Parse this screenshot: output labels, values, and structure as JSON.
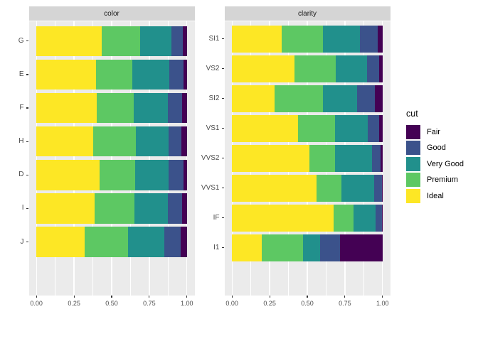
{
  "figure": {
    "background": "#FFFFFF"
  },
  "style": {
    "panel_bg": "#EBEBEB",
    "strip_bg": "#D5D5D5",
    "grid_color": "#FFFFFF",
    "tick_color": "#333333",
    "axis_text_color": "#4D4D4D",
    "strip_text_color": "#1A1A1A"
  },
  "legend": {
    "title": "cut",
    "entries": [
      {
        "label": "Fair",
        "color": "#440154"
      },
      {
        "label": "Good",
        "color": "#3B528B"
      },
      {
        "label": "Very Good",
        "color": "#21908C"
      },
      {
        "label": "Premium",
        "color": "#5DC863"
      },
      {
        "label": "Ideal",
        "color": "#FDE725"
      }
    ]
  },
  "x_tick_labels": [
    "0.00",
    "0.25",
    "0.50",
    "0.75",
    "1.00"
  ],
  "x_tick_values": [
    0,
    0.25,
    0.5,
    0.75,
    1
  ],
  "minor_gridline_values": [
    0.125,
    0.375,
    0.625,
    0.875
  ],
  "chart_data": [
    {
      "type": "bar",
      "orientation": "horizontal",
      "stacking": "fill",
      "title": "color",
      "xlim": [
        0,
        1
      ],
      "grid": true,
      "categories": [
        "G",
        "E",
        "F",
        "H",
        "D",
        "I",
        "J"
      ],
      "series": [
        {
          "name": "Ideal",
          "values": [
            0.433,
            0.398,
            0.401,
            0.375,
            0.418,
            0.386,
            0.319
          ]
        },
        {
          "name": "Premium",
          "values": [
            0.259,
            0.239,
            0.244,
            0.284,
            0.237,
            0.263,
            0.288
          ]
        },
        {
          "name": "Very Good",
          "values": [
            0.204,
            0.245,
            0.227,
            0.22,
            0.223,
            0.222,
            0.241
          ]
        },
        {
          "name": "Good",
          "values": [
            0.077,
            0.095,
            0.095,
            0.085,
            0.098,
            0.096,
            0.109
          ]
        },
        {
          "name": "Fair",
          "values": [
            0.028,
            0.023,
            0.033,
            0.036,
            0.024,
            0.032,
            0.042
          ]
        }
      ]
    },
    {
      "type": "bar",
      "orientation": "horizontal",
      "stacking": "fill",
      "title": "clarity",
      "xlim": [
        0,
        1
      ],
      "grid": true,
      "categories": [
        "SI1",
        "VS2",
        "SI2",
        "VS1",
        "VVS2",
        "VVS1",
        "IF",
        "I1"
      ],
      "series": [
        {
          "name": "Ideal",
          "values": [
            0.328,
            0.414,
            0.283,
            0.439,
            0.514,
            0.56,
            0.677,
            0.197
          ]
        },
        {
          "name": "Premium",
          "values": [
            0.274,
            0.274,
            0.321,
            0.243,
            0.172,
            0.169,
            0.129,
            0.277
          ]
        },
        {
          "name": "Very Good",
          "values": [
            0.248,
            0.211,
            0.228,
            0.217,
            0.244,
            0.216,
            0.15,
            0.113
          ]
        },
        {
          "name": "Good",
          "values": [
            0.119,
            0.08,
            0.118,
            0.079,
            0.056,
            0.051,
            0.04,
            0.13
          ]
        },
        {
          "name": "Fair",
          "values": [
            0.031,
            0.021,
            0.051,
            0.021,
            0.014,
            0.005,
            0.005,
            0.283
          ]
        }
      ]
    }
  ]
}
